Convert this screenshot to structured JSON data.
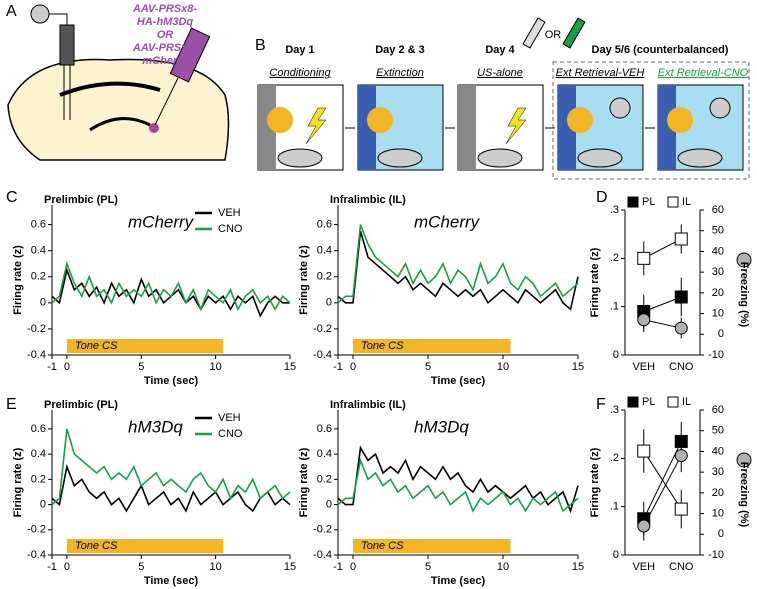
{
  "figure": {
    "panel_labels": [
      "A",
      "B",
      "C",
      "D",
      "E",
      "F"
    ],
    "virus_label": [
      "AAV-PRSx8-",
      "HA-hM3Dq",
      "OR",
      "AAV-PRSx8-",
      "mCherry"
    ],
    "days": [
      "Day 1",
      "Day 2 & 3",
      "Day 4",
      "Day 5/6 (counterbalanced)"
    ],
    "phases": [
      "Conditioning",
      "Extinction",
      "US-alone",
      "Ext Retrieval-VEH",
      "Ext Retrieval-CNO"
    ],
    "or_label": "OR"
  },
  "chart_data": [
    {
      "type": "line",
      "title": "Prelimbic (PL)",
      "subtitle": "mCherry",
      "x_label": "Time (sec)",
      "y_label": "Firing rate (z)",
      "annotation": {
        "label": "Tone CS",
        "start": 0,
        "end": 10.5
      },
      "x": [
        -1,
        -0.5,
        0,
        0.5,
        1,
        1.5,
        2,
        2.5,
        3,
        3.5,
        4,
        4.5,
        5,
        5.5,
        6,
        6.5,
        7,
        7.5,
        8,
        8.5,
        9,
        9.5,
        10,
        10.5,
        11,
        11.5,
        12,
        12.5,
        13,
        13.5,
        14,
        14.5,
        15
      ],
      "series": [
        {
          "name": "VEH",
          "color": "#000000",
          "values": [
            0.05,
            0.0,
            0.25,
            0.1,
            0.15,
            0.05,
            0.12,
            0.0,
            0.15,
            0.05,
            0.1,
            0.0,
            0.18,
            0.05,
            0.1,
            0.0,
            0.05,
            0.1,
            0.0,
            0.05,
            -0.05,
            0.05,
            0.0,
            0.05,
            -0.05,
            0.05,
            0.0,
            0.05,
            -0.1,
            0.0,
            0.05,
            0.0,
            0.0
          ]
        },
        {
          "name": "CNO",
          "color": "#1a9e4a",
          "values": [
            0.0,
            0.05,
            0.3,
            0.15,
            0.05,
            0.2,
            0.05,
            0.1,
            0.0,
            0.15,
            0.05,
            0.1,
            0.05,
            0.15,
            0.0,
            0.1,
            0.05,
            0.15,
            0.0,
            0.1,
            -0.05,
            0.1,
            0.05,
            0.0,
            0.1,
            -0.05,
            0.05,
            0.1,
            0.0,
            0.05,
            -0.05,
            0.05,
            0.0
          ]
        }
      ],
      "xlim": [
        -1,
        15
      ],
      "xticks": [
        -1,
        0,
        5,
        10,
        15
      ],
      "ylim": [
        -0.4,
        0.75
      ],
      "yticks": [
        -0.4,
        -0.2,
        0,
        0.2,
        0.4,
        0.6
      ],
      "legend": "upper right"
    },
    {
      "type": "line",
      "title": "Infralimbic (IL)",
      "subtitle": "mCherry",
      "x_label": "Time (sec)",
      "y_label": "Firing rate (z)",
      "annotation": {
        "label": "Tone CS",
        "start": 0,
        "end": 10.5
      },
      "x": [
        -1,
        -0.5,
        0,
        0.5,
        1,
        1.5,
        2,
        2.5,
        3,
        3.5,
        4,
        4.5,
        5,
        5.5,
        6,
        6.5,
        7,
        7.5,
        8,
        8.5,
        9,
        9.5,
        10,
        10.5,
        11,
        11.5,
        12,
        12.5,
        13,
        13.5,
        14,
        14.5,
        15
      ],
      "series": [
        {
          "name": "VEH",
          "color": "#000000",
          "values": [
            0.05,
            0.0,
            0.0,
            0.55,
            0.35,
            0.3,
            0.25,
            0.2,
            0.15,
            0.2,
            0.1,
            0.15,
            0.1,
            0.05,
            0.15,
            0.1,
            0.05,
            0.1,
            0.05,
            0.1,
            0.0,
            0.05,
            0.1,
            0.05,
            0.0,
            0.1,
            0.05,
            0.0,
            0.05,
            0.1,
            0.0,
            -0.05,
            0.2
          ]
        },
        {
          "name": "CNO",
          "color": "#1a9e4a",
          "values": [
            0.0,
            0.05,
            0.05,
            0.6,
            0.45,
            0.35,
            0.3,
            0.25,
            0.2,
            0.3,
            0.15,
            0.25,
            0.15,
            0.2,
            0.3,
            0.15,
            0.25,
            0.2,
            0.1,
            0.3,
            0.15,
            0.2,
            0.3,
            0.15,
            0.1,
            0.2,
            0.15,
            0.05,
            0.1,
            0.15,
            0.05,
            0.1,
            0.15
          ]
        }
      ],
      "xlim": [
        -1,
        15
      ],
      "xticks": [
        -1,
        0,
        5,
        10,
        15
      ],
      "ylim": [
        -0.4,
        0.75
      ],
      "yticks": [
        -0.4,
        -0.2,
        0,
        0.2,
        0.4,
        0.6
      ]
    },
    {
      "type": "dual",
      "x_label_none": null,
      "y_label": "Firing rate (z)",
      "y2_label": "Freezing (%)",
      "categories": [
        "VEH",
        "CNO"
      ],
      "series": [
        {
          "name": "PL",
          "color": "#000000",
          "marker": "square",
          "values": [
            0.09,
            0.12
          ],
          "errors": [
            0.035,
            0.04
          ]
        },
        {
          "name": "IL",
          "color": "#ffffff",
          "marker": "square",
          "values": [
            0.2,
            0.24
          ],
          "errors": [
            0.035,
            0.03
          ]
        },
        {
          "color": "#b0b0b0",
          "marker": "circle",
          "axis": "y2",
          "values": [
            7,
            3
          ],
          "errors": [
            6,
            5
          ]
        }
      ],
      "ylim": [
        0,
        0.3
      ],
      "yticks": [
        {
          "value": 0,
          "label": "0"
        },
        {
          "value": 0.1,
          "label": ".1"
        },
        {
          "value": 0.2,
          "label": ".2"
        },
        {
          "value": 0.3,
          "label": ".3"
        }
      ],
      "y2lim": [
        -10,
        60
      ],
      "y2ticks": [
        -10,
        0,
        10,
        20,
        30,
        40,
        50,
        60
      ]
    },
    {
      "type": "line",
      "title": "Prelimbic (PL)",
      "subtitle": "hM3Dq",
      "x_label": "Time (sec)",
      "y_label": "Firing rate (z)",
      "annotation": {
        "label": "Tone CS",
        "start": 0,
        "end": 10.5
      },
      "x": [
        -1,
        -0.5,
        0,
        0.5,
        1,
        1.5,
        2,
        2.5,
        3,
        3.5,
        4,
        4.5,
        5,
        5.5,
        6,
        6.5,
        7,
        7.5,
        8,
        8.5,
        9,
        9.5,
        10,
        10.5,
        11,
        11.5,
        12,
        12.5,
        13,
        13.5,
        14,
        14.5,
        15
      ],
      "series": [
        {
          "name": "VEH",
          "color": "#000000",
          "values": [
            0.05,
            0.0,
            0.3,
            0.15,
            0.2,
            0.1,
            0.05,
            0.1,
            0.0,
            0.05,
            -0.05,
            0.05,
            0.15,
            0.0,
            0.05,
            0.1,
            0.0,
            0.05,
            -0.05,
            0.1,
            0.0,
            0.05,
            0.1,
            0.0,
            0.05,
            0.1,
            0.0,
            -0.05,
            0.05,
            0.1,
            0.0,
            0.05,
            0.0
          ]
        },
        {
          "name": "CNO",
          "color": "#1a9e4a",
          "values": [
            0.0,
            0.05,
            0.6,
            0.4,
            0.35,
            0.3,
            0.25,
            0.3,
            0.2,
            0.25,
            0.2,
            0.3,
            0.15,
            0.2,
            0.25,
            0.15,
            0.2,
            0.15,
            0.1,
            0.2,
            0.25,
            0.15,
            0.1,
            0.2,
            0.05,
            0.15,
            0.1,
            0.2,
            0.05,
            0.1,
            0.15,
            0.05,
            0.1
          ]
        }
      ],
      "xlim": [
        -1,
        15
      ],
      "xticks": [
        -1,
        0,
        5,
        10,
        15
      ],
      "ylim": [
        -0.4,
        0.75
      ],
      "yticks": [
        -0.4,
        -0.2,
        0,
        0.2,
        0.4,
        0.6
      ],
      "legend": "upper right"
    },
    {
      "type": "line",
      "title": "Infralimbic (IL)",
      "subtitle": "hM3Dq",
      "x_label": "Time (sec)",
      "y_label": "Firing rate (z)",
      "annotation": {
        "label": "Tone CS",
        "start": 0,
        "end": 10.5
      },
      "x": [
        -1,
        -0.5,
        0,
        0.5,
        1,
        1.5,
        2,
        2.5,
        3,
        3.5,
        4,
        4.5,
        5,
        5.5,
        6,
        6.5,
        7,
        7.5,
        8,
        8.5,
        9,
        9.5,
        10,
        10.5,
        11,
        11.5,
        12,
        12.5,
        13,
        13.5,
        14,
        14.5,
        15
      ],
      "series": [
        {
          "name": "VEH",
          "color": "#000000",
          "values": [
            0.05,
            0.0,
            0.0,
            0.45,
            0.35,
            0.4,
            0.25,
            0.3,
            0.25,
            0.35,
            0.2,
            0.3,
            0.25,
            0.2,
            0.3,
            0.2,
            0.25,
            0.15,
            0.1,
            0.2,
            0.1,
            0.15,
            0.1,
            0.05,
            0.1,
            0.15,
            0.05,
            0.1,
            0.0,
            0.05,
            0.1,
            -0.05,
            0.15
          ]
        },
        {
          "name": "CNO",
          "color": "#1a9e4a",
          "values": [
            0.0,
            0.05,
            0.05,
            0.35,
            0.2,
            0.25,
            0.15,
            0.2,
            0.1,
            0.15,
            0.05,
            0.1,
            0.15,
            0.05,
            0.1,
            0.0,
            0.05,
            0.1,
            -0.05,
            0.05,
            0.0,
            0.05,
            0.1,
            0.0,
            0.05,
            -0.05,
            0.05,
            0.0,
            0.05,
            0.1,
            -0.05,
            0.0,
            0.05
          ]
        }
      ],
      "xlim": [
        -1,
        15
      ],
      "xticks": [
        -1,
        0,
        5,
        10,
        15
      ],
      "ylim": [
        -0.4,
        0.75
      ],
      "yticks": [
        -0.4,
        -0.2,
        0,
        0.2,
        0.4,
        0.6
      ]
    },
    {
      "type": "dual",
      "y_label": "Firing rate (z)",
      "y2_label": "Freezing (%)",
      "categories": [
        "VEH",
        "CNO"
      ],
      "series": [
        {
          "name": "PL",
          "color": "#000000",
          "marker": "square",
          "values": [
            0.075,
            0.235
          ],
          "errors": [
            0.035,
            0.04
          ]
        },
        {
          "name": "IL",
          "color": "#ffffff",
          "marker": "square",
          "values": [
            0.215,
            0.095
          ],
          "errors": [
            0.045,
            0.04
          ]
        },
        {
          "color": "#b0b0b0",
          "marker": "circle",
          "axis": "y2",
          "values": [
            4,
            38
          ],
          "errors": [
            7,
            8
          ]
        }
      ],
      "ylim": [
        0,
        0.3
      ],
      "yticks": [
        {
          "value": 0,
          "label": "0"
        },
        {
          "value": 0.1,
          "label": ".1"
        },
        {
          "value": 0.2,
          "label": ".2"
        },
        {
          "value": 0.3,
          "label": ".3"
        }
      ],
      "y2lim": [
        -10,
        60
      ],
      "y2ticks": [
        -10,
        0,
        10,
        20,
        30,
        40,
        50,
        60
      ]
    }
  ]
}
